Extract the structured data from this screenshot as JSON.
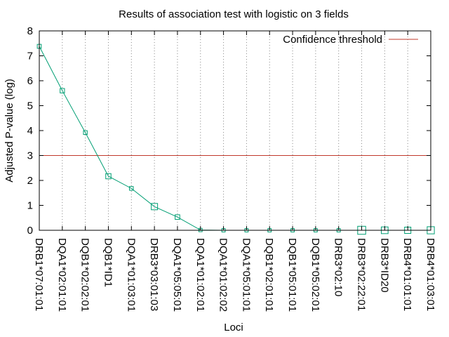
{
  "chart_data": {
    "type": "line",
    "title": "Results of association test with logistic on 3 fields",
    "xlabel": "Loci",
    "ylabel": "Adjusted P-value (log)",
    "ylim": [
      0,
      8
    ],
    "yticks": [
      "0",
      "1",
      "2",
      "3",
      "4",
      "5",
      "6",
      "7",
      "8"
    ],
    "categories": [
      "DRB1*07:01:01",
      "DQA1*02:01:01",
      "DQB1*02:02:01",
      "DQB1*ID1",
      "DQA1*01:03:01",
      "DRB3*03:01:03",
      "DQA1*05:05:01",
      "DQA1*01:02:01",
      "DQA1*01:02:02",
      "DQA1*05:01:01",
      "DQB1*02:01:01",
      "DQB1*05:01:01",
      "DQB1*05:02:01",
      "DRB3*02:10",
      "DRB3*02:22:01",
      "DRB3*ID20",
      "DRB4*01:01:01",
      "DRB4*01:03:01"
    ],
    "values": [
      7.38,
      5.6,
      3.92,
      2.17,
      1.68,
      0.95,
      0.53,
      0.01,
      0.0,
      0.0,
      0.0,
      0.0,
      0.0,
      0.0,
      0.0,
      0.0,
      0.0,
      0.0
    ],
    "marker_weights": [
      0.45,
      0.55,
      0.4,
      0.75,
      0.4,
      1.0,
      0.6,
      0.3,
      0.3,
      0.3,
      0.3,
      0.3,
      0.3,
      0.3,
      1.4,
      1.1,
      1.0,
      1.2
    ],
    "series_color": "#009e73",
    "threshold": {
      "name": "Confidence threshold",
      "value": 3.0,
      "color": "#c0392b"
    },
    "legend_position": "top-right",
    "grid": "vertical-dotted"
  }
}
